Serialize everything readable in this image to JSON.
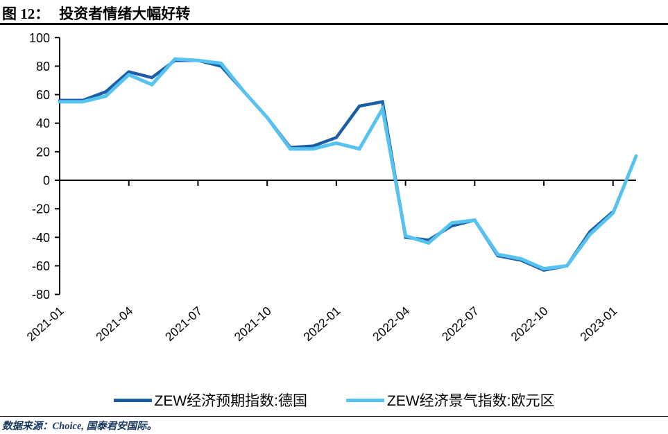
{
  "title": {
    "prefix": "图 12：",
    "text": "投资者情绪大幅好转"
  },
  "footer": {
    "source_label": "数据来源：Choice, 国泰君安国际。"
  },
  "chart_data": {
    "type": "line",
    "x": [
      "2021-01",
      "2021-02",
      "2021-03",
      "2021-04",
      "2021-05",
      "2021-06",
      "2021-07",
      "2021-08",
      "2021-09",
      "2021-10",
      "2021-11",
      "2021-12",
      "2022-01",
      "2022-02",
      "2022-03",
      "2022-04",
      "2022-05",
      "2022-06",
      "2022-07",
      "2022-08",
      "2022-09",
      "2022-10",
      "2022-11",
      "2022-12",
      "2023-01",
      "2023-02"
    ],
    "x_tick_labels": [
      "2021-01",
      "2021-04",
      "2021-07",
      "2021-10",
      "2022-01",
      "2022-04",
      "2022-07",
      "2022-10",
      "2023-01"
    ],
    "y_ticks": [
      100,
      80,
      60,
      40,
      20,
      0,
      -20,
      -40,
      -60,
      -80
    ],
    "ylim": [
      -80,
      100
    ],
    "grid": false,
    "legend_position": "bottom",
    "series": [
      {
        "name": "ZEW经济预期指数:德国",
        "color": "#1B5EA6",
        "values": [
          56,
          56,
          62,
          76,
          72,
          84,
          84,
          80,
          62,
          44,
          23,
          24,
          30,
          52,
          55,
          -40,
          -42,
          -32,
          -28,
          -53,
          -56,
          -63,
          -60,
          -36,
          -22,
          null
        ]
      },
      {
        "name": "ZEW经济景气指数:欧元区",
        "color": "#56C2F0",
        "values": [
          55,
          55,
          59,
          74,
          67,
          85,
          84,
          82,
          62,
          44,
          22,
          22,
          26,
          22,
          50,
          -39,
          -44,
          -30,
          -28,
          -52,
          -55,
          -62,
          -60,
          -38,
          -23,
          17
        ]
      }
    ],
    "axis_color": "#000000"
  }
}
